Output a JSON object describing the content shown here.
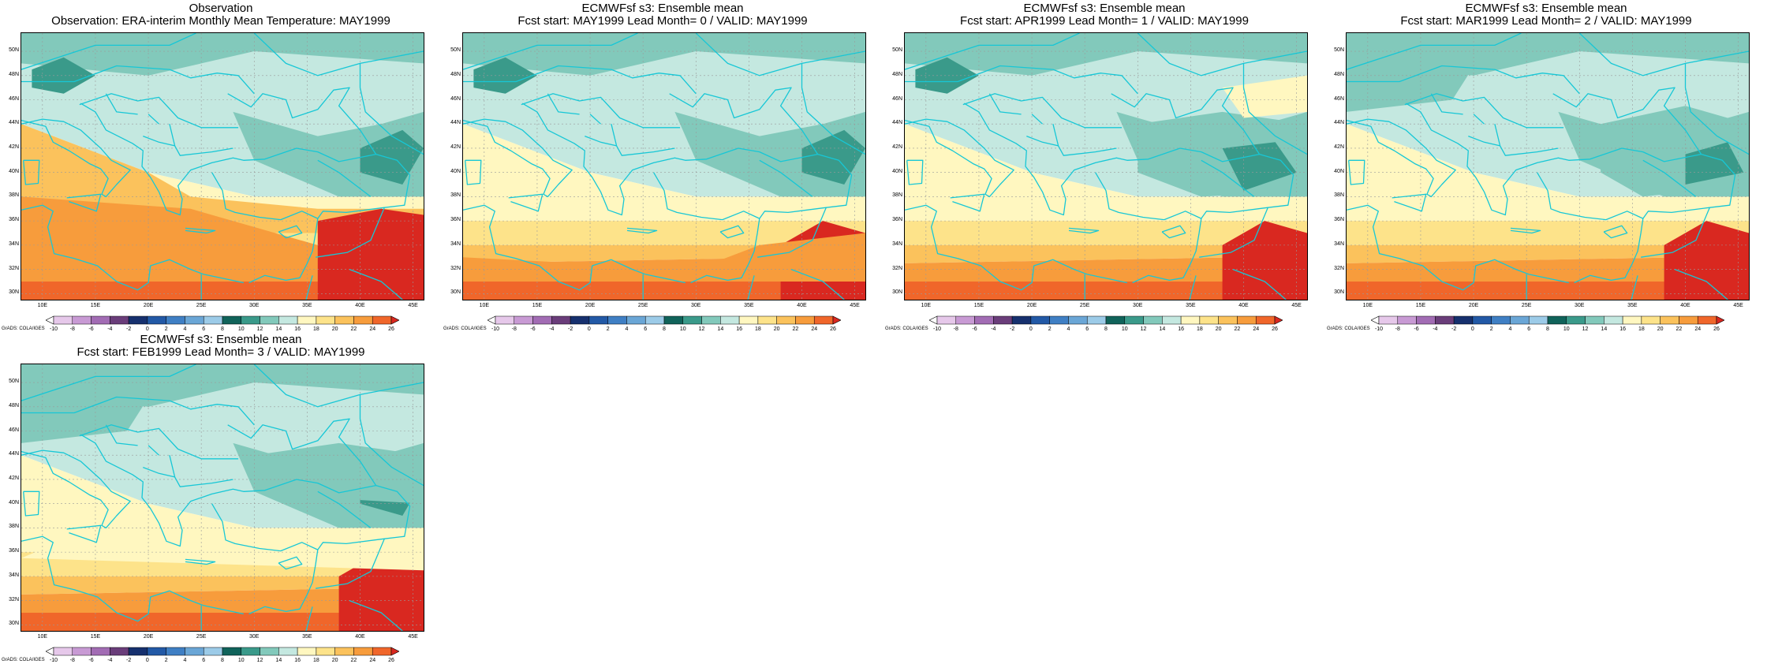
{
  "panels": [
    {
      "title1": "Observation",
      "title2": "Observation: ERA-interim Monthly Mean Temperature: MAY1999",
      "variant": 0
    },
    {
      "title1": "ECMWFsf s3: Ensemble mean",
      "title2": "Fcst start: MAY1999  Lead Month= 0 / VALID: MAY1999",
      "variant": 1
    },
    {
      "title1": "ECMWFsf s3: Ensemble mean",
      "title2": "Fcst start: APR1999  Lead Month= 1 / VALID: MAY1999",
      "variant": 2
    },
    {
      "title1": "ECMWFsf s3: Ensemble mean",
      "title2": "Fcst start: MAR1999  Lead Month= 2 / VALID: MAY1999",
      "variant": 3
    },
    {
      "title1": "ECMWFsf s3: Ensemble mean",
      "title2": "Fcst start: FEB1999  Lead Month= 3 / VALID: MAY1999",
      "variant": 4
    }
  ],
  "axes": {
    "lat_ticks": [
      "30N",
      "32N",
      "34N",
      "36N",
      "38N",
      "40N",
      "42N",
      "44N",
      "46N",
      "48N",
      "50N"
    ],
    "lat_values": [
      30,
      32,
      34,
      36,
      38,
      40,
      42,
      44,
      46,
      48,
      50
    ],
    "lon_ticks": [
      "10E",
      "15E",
      "20E",
      "25E",
      "30E",
      "35E",
      "40E",
      "45E"
    ],
    "lon_values": [
      10,
      15,
      20,
      25,
      30,
      35,
      40,
      45
    ],
    "lon_range": [
      8,
      46
    ],
    "lat_range": [
      29.5,
      51.5
    ]
  },
  "colorbar": {
    "labels": [
      "-10",
      "-8",
      "-6",
      "-4",
      "-2",
      "0",
      "2",
      "4",
      "6",
      "8",
      "10",
      "12",
      "14",
      "16",
      "18",
      "20",
      "22",
      "24",
      "26"
    ],
    "colors": [
      "#ffffff",
      "#e6c8ea",
      "#c89ad4",
      "#a26cb4",
      "#6a3d7a",
      "#16306e",
      "#2259a6",
      "#3f7fc4",
      "#6aa6d6",
      "#9ccbe8",
      "#10635a",
      "#3a9a8a",
      "#82c9bb",
      "#c4e8e0",
      "#fff7c0",
      "#fde38a",
      "#fbc25c",
      "#f79c3c",
      "#f0662a",
      "#d92820"
    ]
  },
  "credit": "GrADS: COLA/IGES"
}
